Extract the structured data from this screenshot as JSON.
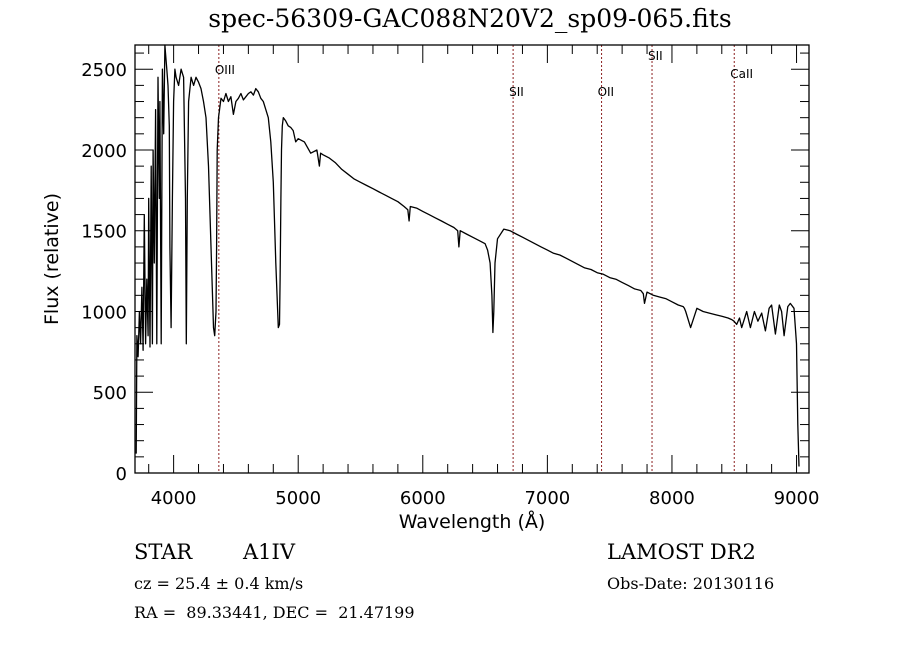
{
  "chart_data": {
    "type": "line",
    "title": "spec-56309-GAC088N20V2_sp09-065.fits",
    "xlabel": "Wavelength (Å)",
    "ylabel": "Flux (relative)",
    "xlim": [
      3690,
      9100
    ],
    "ylim": [
      0,
      2650
    ],
    "xticks": [
      4000,
      5000,
      6000,
      7000,
      8000,
      9000
    ],
    "yticks": [
      0,
      500,
      1000,
      1500,
      2000,
      2500
    ],
    "grid": false,
    "legend": "none",
    "line_color": "#000000",
    "marker_color": "#8b2020",
    "lines": [
      {
        "label": "OIII",
        "wavelength": 4363
      },
      {
        "label": "SII",
        "wavelength": 6725
      },
      {
        "label": "OII",
        "wavelength": 7435
      },
      {
        "label": "SII",
        "wavelength": 7840
      },
      {
        "label": "CaII",
        "wavelength": 8500
      }
    ],
    "series": [
      {
        "name": "flux",
        "x": [
          3700,
          3705,
          3715,
          3725,
          3735,
          3745,
          3755,
          3765,
          3775,
          3785,
          3795,
          3800,
          3810,
          3820,
          3830,
          3835,
          3845,
          3855,
          3865,
          3875,
          3885,
          3890,
          3900,
          3910,
          3920,
          3930,
          3935,
          3945,
          3955,
          3965,
          3970,
          3980,
          3990,
          4000,
          4010,
          4020,
          4040,
          4060,
          4080,
          4095,
          4102,
          4110,
          4120,
          4140,
          4160,
          4180,
          4200,
          4220,
          4240,
          4260,
          4280,
          4300,
          4320,
          4330,
          4340,
          4345,
          4350,
          4360,
          4380,
          4400,
          4420,
          4440,
          4460,
          4480,
          4500,
          4520,
          4540,
          4560,
          4580,
          4600,
          4620,
          4640,
          4660,
          4680,
          4700,
          4720,
          4740,
          4760,
          4780,
          4800,
          4820,
          4840,
          4850,
          4855,
          4861,
          4866,
          4872,
          4880,
          4900,
          4920,
          4940,
          4960,
          4980,
          5000,
          5050,
          5100,
          5150,
          5170,
          5180,
          5200,
          5250,
          5300,
          5350,
          5400,
          5450,
          5500,
          5550,
          5600,
          5650,
          5700,
          5750,
          5800,
          5850,
          5880,
          5890,
          5900,
          5950,
          6000,
          6050,
          6100,
          6150,
          6200,
          6250,
          6280,
          6290,
          6300,
          6350,
          6400,
          6450,
          6500,
          6520,
          6540,
          6555,
          6563,
          6570,
          6580,
          6600,
          6650,
          6700,
          6750,
          6800,
          6850,
          6900,
          6950,
          7000,
          7050,
          7100,
          7150,
          7200,
          7250,
          7300,
          7350,
          7400,
          7450,
          7500,
          7550,
          7600,
          7650,
          7700,
          7750,
          7770,
          7780,
          7800,
          7850,
          7900,
          7950,
          8000,
          8050,
          8090,
          8100,
          8110,
          8150,
          8200,
          8250,
          8300,
          8350,
          8400,
          8450,
          8480,
          8498,
          8520,
          8542,
          8560,
          8600,
          8630,
          8662,
          8690,
          8720,
          8750,
          8780,
          8800,
          8830,
          8862,
          8880,
          8900,
          8930,
          8950,
          8980,
          9000,
          9010,
          9020
        ],
        "y": [
          120,
          850,
          720,
          1000,
          800,
          1150,
          760,
          1600,
          800,
          1200,
          850,
          1700,
          780,
          1900,
          800,
          2000,
          1300,
          2250,
          800,
          2450,
          1700,
          2300,
          800,
          2500,
          2100,
          2650,
          2600,
          2500,
          2400,
          2150,
          1400,
          900,
          1700,
          2300,
          2500,
          2450,
          2400,
          2500,
          2450,
          1700,
          800,
          1700,
          2300,
          2450,
          2400,
          2450,
          2420,
          2380,
          2300,
          2200,
          1900,
          1400,
          900,
          850,
          1000,
          1400,
          2000,
          2200,
          2320,
          2300,
          2350,
          2300,
          2330,
          2220,
          2300,
          2320,
          2350,
          2310,
          2330,
          2350,
          2360,
          2340,
          2380,
          2360,
          2320,
          2300,
          2250,
          2200,
          2050,
          1800,
          1300,
          900,
          920,
          1200,
          1700,
          2000,
          2150,
          2200,
          2180,
          2150,
          2140,
          2120,
          2050,
          2070,
          2050,
          1980,
          2000,
          1900,
          1980,
          1970,
          1950,
          1920,
          1880,
          1850,
          1820,
          1800,
          1780,
          1760,
          1740,
          1720,
          1700,
          1680,
          1650,
          1630,
          1560,
          1650,
          1640,
          1620,
          1600,
          1580,
          1560,
          1540,
          1520,
          1500,
          1400,
          1500,
          1480,
          1460,
          1440,
          1420,
          1380,
          1300,
          1100,
          870,
          1000,
          1300,
          1450,
          1510,
          1500,
          1480,
          1460,
          1440,
          1420,
          1400,
          1380,
          1360,
          1350,
          1330,
          1310,
          1290,
          1270,
          1260,
          1240,
          1230,
          1210,
          1200,
          1180,
          1160,
          1140,
          1130,
          1110,
          1050,
          1120,
          1100,
          1090,
          1080,
          1060,
          1040,
          1030,
          1020,
          1000,
          900,
          1020,
          1000,
          990,
          980,
          970,
          960,
          950,
          940,
          920,
          960,
          900,
          1000,
          900,
          1000,
          940,
          990,
          880,
          1020,
          1040,
          860,
          1040,
          1000,
          850,
          1030,
          1050,
          1020,
          800,
          300,
          40
        ]
      }
    ]
  },
  "footer": {
    "object_class": "STAR",
    "subclass": "A1IV",
    "redshift": "cz = 25.4 ± 0.4 km/s",
    "coords": "RA =  89.33441, DEC =  21.47199",
    "survey": "LAMOST DR2",
    "obs_date": "Obs-Date: 20130116"
  }
}
